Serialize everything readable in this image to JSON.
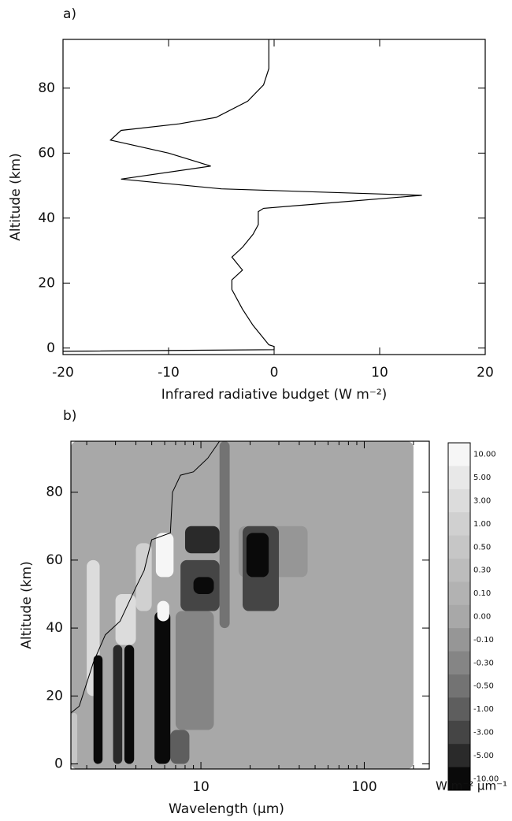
{
  "chart_data": [
    {
      "type": "line",
      "panel_label": "a)",
      "x_label": "Infrared radiative budget (W m⁻²)",
      "y_label": "Altitude (km)",
      "xlim": [
        -20,
        20
      ],
      "ylim": [
        -2,
        95
      ],
      "xticks": [
        -20,
        -10,
        0,
        10,
        20
      ],
      "yticks": [
        0,
        20,
        40,
        60,
        80
      ],
      "series": [
        {
          "color": "#000000",
          "values": [
            -20,
            0,
            0,
            -0.5,
            -1,
            -2,
            -3,
            -4,
            -4,
            -3,
            -4,
            -3,
            -2,
            -1.5,
            -1.5,
            -1,
            14,
            -5,
            -14.5,
            -6,
            -10,
            -15.5,
            -14.5,
            -9,
            -5.5,
            -2.5,
            -1,
            -0.5,
            -0.5
          ],
          "y": [
            -1,
            -0.5,
            0.5,
            1,
            3,
            7,
            12,
            18,
            21,
            24,
            28,
            31,
            35,
            38,
            42,
            43,
            47,
            49,
            52,
            56,
            60,
            64,
            67,
            69,
            71,
            76,
            81,
            86,
            95
          ]
        }
      ]
    },
    {
      "type": "contour",
      "panel_label": "b)",
      "x_label": "Wavelength (μm)",
      "y_label": "Altitude (km)",
      "log_x": true,
      "xlim": [
        1.6,
        250
      ],
      "ylim": [
        -1.5,
        95
      ],
      "xticks": [
        10,
        100
      ],
      "xminorticks": [
        2,
        3,
        4,
        5,
        6,
        7,
        8,
        9,
        20,
        30,
        40,
        50,
        60,
        70,
        80,
        90,
        200
      ],
      "yticks": [
        0,
        20,
        40,
        60,
        80
      ],
      "colorbar": {
        "unit": "W m⁻² μm⁻¹",
        "ticks": [
          {
            "value": 10,
            "label": "10.00"
          },
          {
            "value": 5,
            "label": "5.00"
          },
          {
            "value": 3,
            "label": "3.00"
          },
          {
            "value": 1,
            "label": "1.00"
          },
          {
            "value": 0.5,
            "label": "0.50"
          },
          {
            "value": 0.3,
            "label": "0.30"
          },
          {
            "value": 0.1,
            "label": "0.10"
          },
          {
            "value": 0,
            "label": "0.00"
          },
          {
            "value": -0.1,
            "label": "-0.10"
          },
          {
            "value": -0.3,
            "label": "-0.30"
          },
          {
            "value": -0.5,
            "label": "-0.50"
          },
          {
            "value": -1,
            "label": "-1.00"
          },
          {
            "value": -3,
            "label": "-3.00"
          },
          {
            "value": -5,
            "label": "-5.00"
          },
          {
            "value": -10,
            "label": "-10.00"
          }
        ],
        "colors": [
          "#f6f6f6",
          "#e8e8e8",
          "#dcdcdc",
          "#d0d0d0",
          "#c6c6c6",
          "#bcbcbc",
          "#b2b2b2",
          "#a8a8a8",
          "#969696",
          "#858585",
          "#737373",
          "#5e5e5e",
          "#454545",
          "#2a2a2a",
          "#0a0a0a"
        ]
      },
      "cells": [
        {
          "x": [
            1.6,
            200
          ],
          "y": [
            -1.5,
            95
          ],
          "level": 0
        },
        {
          "x": [
            1.6,
            1.75
          ],
          "y": [
            0,
            15
          ],
          "level": 0.5
        },
        {
          "x": [
            2.0,
            2.4
          ],
          "y": [
            20,
            60
          ],
          "level": 3
        },
        {
          "x": [
            3.0,
            4.0
          ],
          "y": [
            35,
            50
          ],
          "level": 3
        },
        {
          "x": [
            4.0,
            5.0
          ],
          "y": [
            45,
            65
          ],
          "level": 1
        },
        {
          "x": [
            17,
            45
          ],
          "y": [
            55,
            70
          ],
          "level": -0.1
        },
        {
          "x": [
            7,
            12
          ],
          "y": [
            10,
            45
          ],
          "level": -0.3
        },
        {
          "x": [
            13,
            15
          ],
          "y": [
            40,
            95
          ],
          "level": -0.5
        },
        {
          "x": [
            6.5,
            8.5
          ],
          "y": [
            0,
            10
          ],
          "level": -1
        },
        {
          "x": [
            7.5,
            13
          ],
          "y": [
            45,
            60
          ],
          "level": -3
        },
        {
          "x": [
            18,
            30
          ],
          "y": [
            45,
            70
          ],
          "level": -3
        },
        {
          "x": [
            8,
            13
          ],
          "y": [
            62,
            70
          ],
          "level": -5
        },
        {
          "x": [
            2.9,
            3.3
          ],
          "y": [
            0,
            35
          ],
          "level": -5
        },
        {
          "x": [
            9,
            12
          ],
          "y": [
            50,
            55
          ],
          "level": -10
        },
        {
          "x": [
            19,
            26
          ],
          "y": [
            55,
            68
          ],
          "level": -10
        },
        {
          "x": [
            2.2,
            2.5
          ],
          "y": [
            0,
            32
          ],
          "level": -10
        },
        {
          "x": [
            3.4,
            3.9
          ],
          "y": [
            0,
            35
          ],
          "level": -10
        },
        {
          "x": [
            5.2,
            6.5
          ],
          "y": [
            0,
            45
          ],
          "level": -10
        },
        {
          "x": [
            5.3,
            6.8
          ],
          "y": [
            55,
            68
          ],
          "level": 10
        },
        {
          "x": [
            5.4,
            6.4
          ],
          "y": [
            42,
            48
          ],
          "level": 10
        }
      ],
      "contour": {
        "x": [
          1.6,
          1.8,
          2.2,
          2.6,
          3.2,
          4,
          4.5,
          5,
          6.5,
          6.7,
          7.5,
          9,
          11,
          13
        ],
        "y": [
          15,
          17,
          30,
          38,
          42,
          52,
          57,
          66,
          68,
          80,
          85,
          86,
          90,
          95
        ]
      }
    }
  ]
}
